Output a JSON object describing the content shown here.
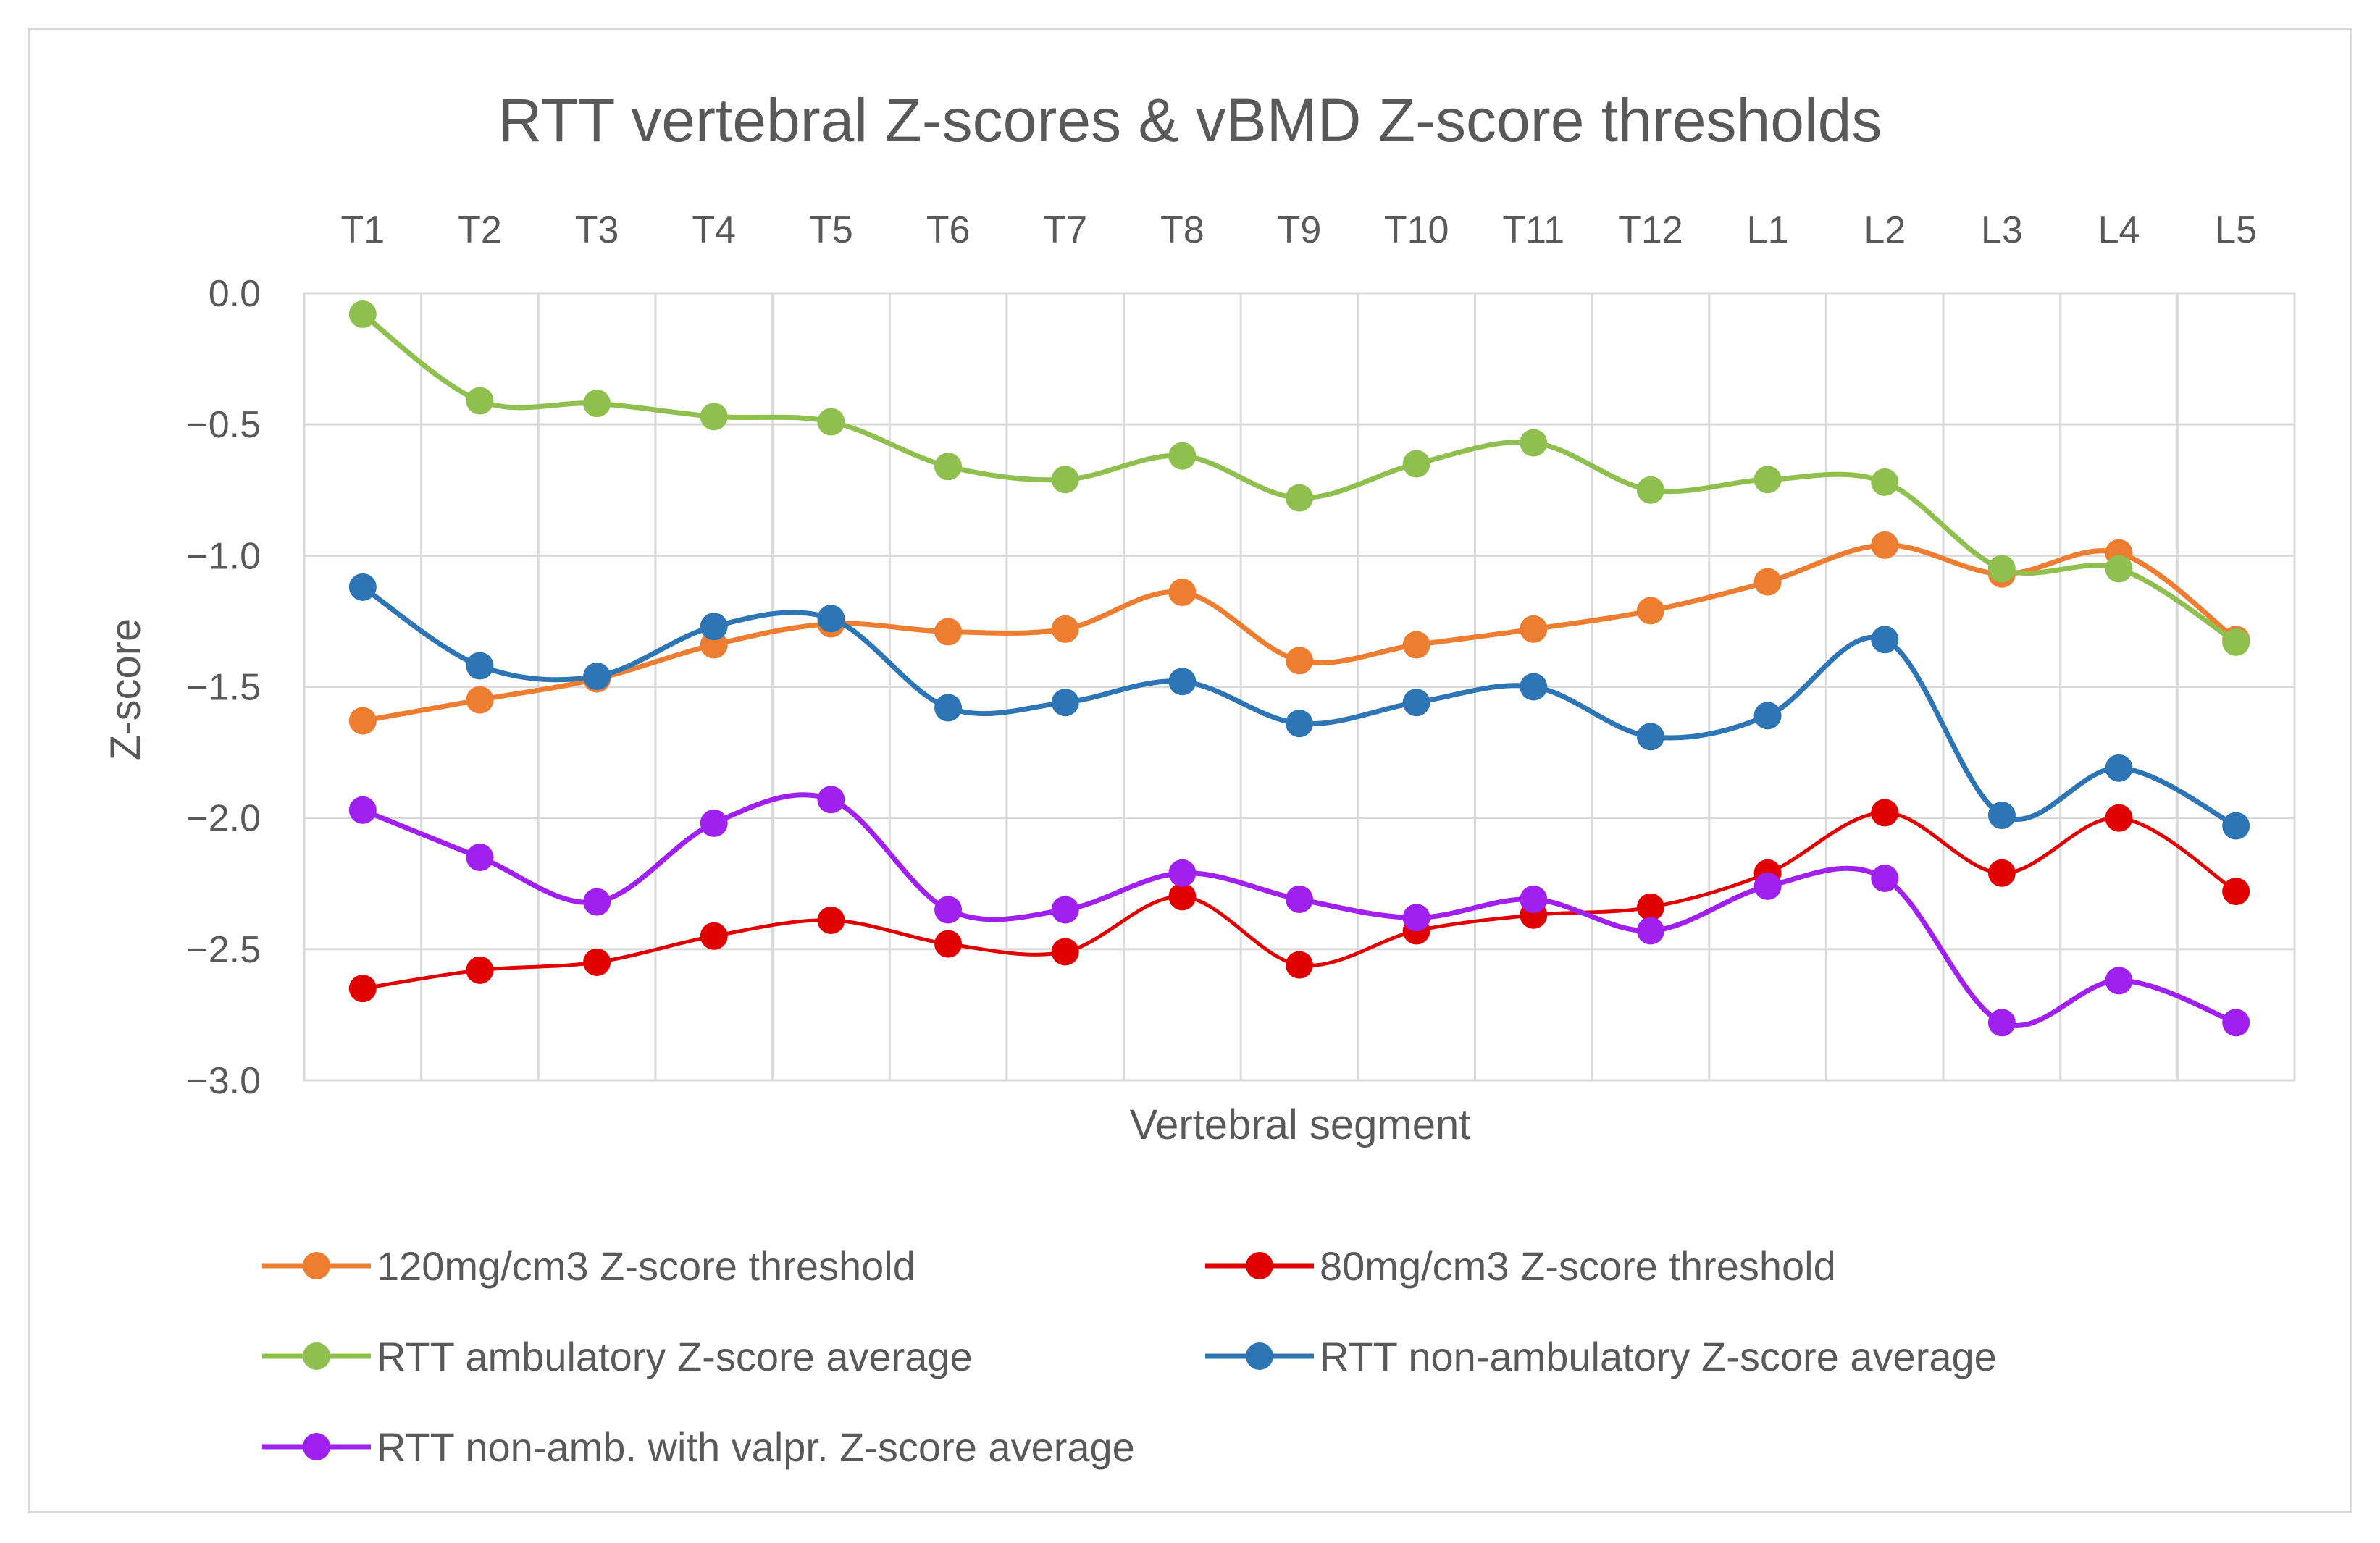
{
  "chart_data": {
    "type": "line",
    "title": "RTT vertebral Z-scores & vBMD Z-score thresholds",
    "xlabel": "Vertebral segment",
    "ylabel": "Z-score",
    "ylim": [
      -3.0,
      0.0
    ],
    "y_ticks": [
      {
        "value": 0.0,
        "label": "0.0"
      },
      {
        "value": -0.5,
        "label": "−0.5"
      },
      {
        "value": -1.0,
        "label": "−1.0"
      },
      {
        "value": -1.5,
        "label": "−1.5"
      },
      {
        "value": -2.0,
        "label": "−2.0"
      },
      {
        "value": -2.5,
        "label": "−2.5"
      },
      {
        "value": -3.0,
        "label": "−3.0"
      }
    ],
    "x_axis_position": "top",
    "grid": true,
    "legend_position": "bottom",
    "categories": [
      "T1",
      "T2",
      "T3",
      "T4",
      "T5",
      "T6",
      "T7",
      "T8",
      "T9",
      "T10",
      "T11",
      "T12",
      "L1",
      "L2",
      "L3",
      "L4",
      "L5"
    ],
    "series": [
      {
        "name": "120mg/cm3 Z-score threshold",
        "color": "#ed7d31",
        "values": [
          -1.63,
          -1.55,
          -1.47,
          -1.34,
          -1.26,
          -1.29,
          -1.28,
          -1.14,
          -1.4,
          -1.34,
          -1.28,
          -1.21,
          -1.1,
          -0.96,
          -1.07,
          -0.99,
          -1.32
        ]
      },
      {
        "name": "80mg/cm3 Z-score threshold",
        "color": "#e00000",
        "values": [
          -2.65,
          -2.58,
          -2.55,
          -2.45,
          -2.39,
          -2.48,
          -2.51,
          -2.3,
          -2.56,
          -2.43,
          -2.37,
          -2.34,
          -2.21,
          -1.98,
          -2.21,
          -2.0,
          -2.28
        ]
      },
      {
        "name": "RTT ambulatory Z-score average",
        "color": "#8fc04f",
        "values": [
          -0.08,
          -0.41,
          -0.42,
          -0.47,
          -0.49,
          -0.66,
          -0.71,
          -0.62,
          -0.78,
          -0.65,
          -0.57,
          -0.75,
          -0.71,
          -0.72,
          -1.05,
          -1.05,
          -1.33
        ]
      },
      {
        "name": "RTT non-ambulatory Z-score average",
        "color": "#2e75b6",
        "values": [
          -1.12,
          -1.42,
          -1.46,
          -1.27,
          -1.24,
          -1.58,
          -1.56,
          -1.48,
          -1.64,
          -1.56,
          -1.5,
          -1.69,
          -1.61,
          -1.32,
          -1.99,
          -1.81,
          -2.03
        ]
      },
      {
        "name": "RTT non-amb. with valpr. Z-score average",
        "color": "#a020f0",
        "values": [
          -1.97,
          -2.15,
          -2.32,
          -2.02,
          -1.93,
          -2.35,
          -2.35,
          -2.21,
          -2.31,
          -2.38,
          -2.31,
          -2.43,
          -2.26,
          -2.23,
          -2.78,
          -2.62,
          -2.78
        ]
      }
    ]
  }
}
